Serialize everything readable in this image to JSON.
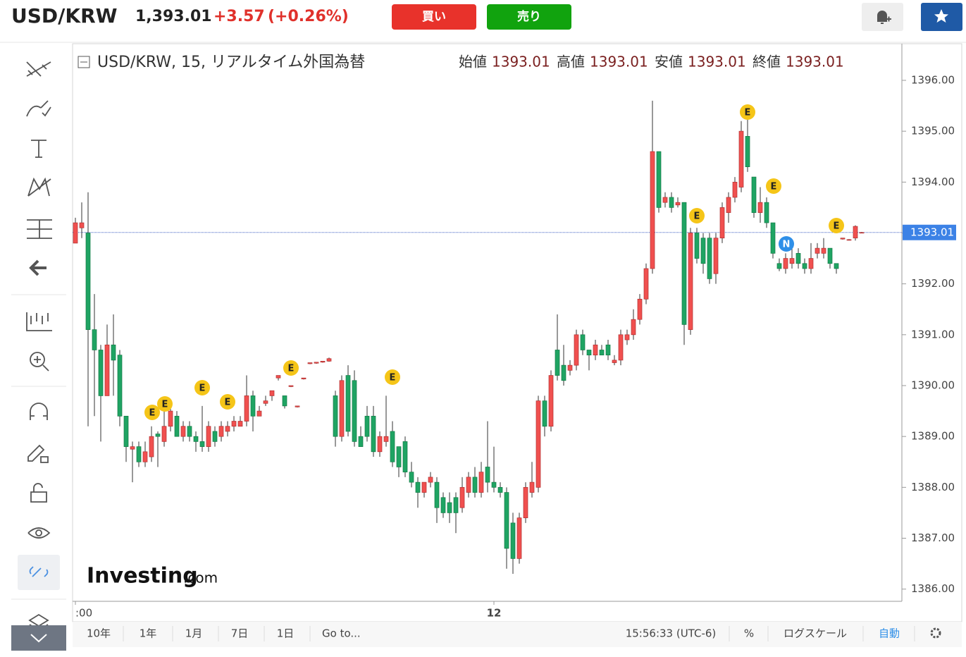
{
  "header": {
    "symbol": "USD/KRW",
    "price": "1,393.01",
    "change": "+3.57",
    "change_pct": "(+0.26%)",
    "buy": "買い",
    "sell": "売り"
  },
  "legend": {
    "title": "USD/KRW, 15, リアルタイム外国為替",
    "ohlc": [
      {
        "label": "始値",
        "value": 1393.01
      },
      {
        "label": "高値",
        "value": 1393.01
      },
      {
        "label": "安値",
        "value": 1393.01
      },
      {
        "label": "終値",
        "value": 1393.01
      }
    ]
  },
  "chart_data": {
    "type": "candlestick",
    "up_color": "#f0504f",
    "down_color": "#1fa463",
    "ylim": [
      1385.76,
      1396.72
    ],
    "yticks": [
      {
        "value": 1386,
        "label": "1386.00"
      },
      {
        "value": 1387,
        "label": "1387.00"
      },
      {
        "value": 1388,
        "label": "1388.00"
      },
      {
        "value": 1389,
        "label": "1389.00"
      },
      {
        "value": 1390,
        "label": "1390.00"
      },
      {
        "value": 1391,
        "label": "1391.00"
      },
      {
        "value": 1392,
        "label": "1392.00"
      },
      {
        "value": 1393,
        "label": "1393.00"
      },
      {
        "value": 1394,
        "label": "1394.00"
      },
      {
        "value": 1395,
        "label": "1395.00"
      },
      {
        "value": 1396,
        "label": "1396.00"
      }
    ],
    "last_price": {
      "value": 1393.01,
      "label": "1393.01"
    },
    "events": [
      "E",
      "E",
      "E",
      "E",
      "E",
      "E",
      "E",
      "E",
      "E",
      "E",
      "N"
    ],
    "categories": [
      ":00",
      null,
      null,
      null,
      null,
      null,
      null,
      null,
      null,
      null,
      null,
      null,
      null,
      null,
      null,
      null,
      null,
      null,
      null,
      null,
      null,
      null,
      null,
      null,
      null,
      null,
      null,
      null,
      null,
      null,
      null,
      null,
      null,
      null,
      null,
      null,
      null,
      null,
      null,
      null,
      null,
      null,
      null,
      null,
      null,
      null,
      null,
      null,
      null,
      null,
      null,
      null,
      null,
      null,
      null,
      null,
      null,
      null,
      null,
      null,
      null,
      null,
      null,
      null,
      null,
      null,
      "12",
      null,
      null,
      null,
      null,
      null,
      null,
      null,
      null,
      null,
      null,
      null,
      null,
      null,
      null,
      null,
      null,
      null,
      null,
      null,
      null,
      null,
      null,
      null,
      null,
      null,
      null,
      null,
      null,
      null,
      null,
      null,
      null,
      null,
      null,
      null,
      null,
      null,
      null,
      null,
      null,
      null,
      null,
      null,
      null,
      null,
      null,
      null,
      null,
      null,
      null,
      null,
      null,
      null,
      null,
      null,
      null,
      null,
      null
    ],
    "candles": [
      [
        1392.8,
        1393.3,
        1392.8,
        1393.2
      ],
      [
        1393.1,
        1393.6,
        1392.9,
        1393.2
      ],
      [
        1393.0,
        1393.8,
        1389.2,
        1391.1
      ],
      [
        1391.1,
        1391.8,
        1389.4,
        1390.7
      ],
      [
        1390.7,
        1390.8,
        1388.9,
        1389.8
      ],
      [
        1389.8,
        1391.2,
        1389.8,
        1390.8
      ],
      [
        1390.8,
        1391.4,
        1389.8,
        1390.5
      ],
      [
        1390.6,
        1390.7,
        1389.2,
        1389.4
      ],
      [
        1389.4,
        1389.4,
        1388.5,
        1388.8
      ],
      [
        1388.75,
        1388.9,
        1388.1,
        1388.8
      ],
      [
        1388.8,
        1388.9,
        1388.4,
        1388.5
      ],
      [
        1388.5,
        1388.9,
        1388.4,
        1388.7
      ],
      [
        1388.6,
        1389.2,
        1388.5,
        1389.0
      ],
      [
        1389.05,
        1389.1,
        1388.4,
        1389.0
      ],
      [
        1388.9,
        1389.5,
        1388.8,
        1389.2
      ],
      [
        1389.2,
        1389.6,
        1389.1,
        1389.5
      ],
      [
        1389.4,
        1389.5,
        1389.0,
        1389.0
      ],
      [
        1389.0,
        1389.3,
        1388.9,
        1389.2
      ],
      [
        1389.2,
        1389.3,
        1388.9,
        1389.0
      ],
      [
        1389.0,
        1389.1,
        1388.7,
        1388.9
      ],
      [
        1388.9,
        1389.6,
        1388.7,
        1388.8
      ],
      [
        1388.8,
        1389.3,
        1388.7,
        1389.2
      ],
      [
        1389.1,
        1389.2,
        1388.8,
        1388.9
      ],
      [
        1389.0,
        1389.3,
        1388.9,
        1389.2
      ],
      [
        1389.1,
        1389.3,
        1389.0,
        1389.2
      ],
      [
        1389.2,
        1389.4,
        1389.1,
        1389.3
      ],
      [
        1389.2,
        1389.4,
        1389.2,
        1389.3
      ],
      [
        1389.3,
        1390.2,
        1389.2,
        1389.8
      ],
      [
        1389.8,
        1389.9,
        1389.1,
        1389.4
      ],
      [
        1389.4,
        1389.6,
        1389.4,
        1389.5
      ],
      [
        1389.65,
        1389.8,
        1389.6,
        1389.7
      ],
      [
        1389.8,
        1389.9,
        1389.7,
        1389.9
      ],
      [
        1390.15,
        1390.2,
        1390.1,
        1390.2
      ],
      [
        1389.8,
        1389.8,
        1389.55,
        1389.6
      ],
      [
        1389.98,
        1390.0,
        1389.97,
        1390.0
      ],
      [
        1389.58,
        1389.6,
        1389.57,
        1389.6
      ],
      [
        1390.13,
        1390.15,
        1390.12,
        1390.15
      ],
      [
        1390.43,
        1390.45,
        1390.42,
        1390.45
      ],
      [
        1390.44,
        1390.46,
        1390.43,
        1390.46
      ],
      [
        1390.46,
        1390.48,
        1390.45,
        1390.48
      ],
      [
        1390.48,
        1390.55,
        1390.47,
        1390.53
      ],
      [
        1389.8,
        1389.9,
        1388.8,
        1389.0
      ],
      [
        1389.0,
        1390.2,
        1388.9,
        1390.1
      ],
      [
        1390.2,
        1390.4,
        1389.0,
        1389.1
      ],
      [
        1390.1,
        1390.3,
        1388.8,
        1388.9
      ],
      [
        1389.0,
        1389.2,
        1388.8,
        1388.8
      ],
      [
        1389.4,
        1389.6,
        1388.9,
        1389.0
      ],
      [
        1389.4,
        1389.6,
        1388.6,
        1388.7
      ],
      [
        1388.7,
        1389.1,
        1388.6,
        1389.0
      ],
      [
        1388.9,
        1389.8,
        1388.8,
        1389.0
      ],
      [
        1389.1,
        1389.3,
        1388.4,
        1388.5
      ],
      [
        1388.8,
        1388.8,
        1388.2,
        1388.4
      ],
      [
        1388.9,
        1389.0,
        1388.2,
        1388.3
      ],
      [
        1388.3,
        1388.5,
        1388.0,
        1388.1
      ],
      [
        1388.1,
        1388.2,
        1387.6,
        1387.9
      ],
      [
        1387.9,
        1388.1,
        1387.8,
        1388.1
      ],
      [
        1388.1,
        1388.3,
        1388.0,
        1388.2
      ],
      [
        1388.1,
        1388.2,
        1387.3,
        1387.6
      ],
      [
        1387.8,
        1387.9,
        1387.4,
        1387.5
      ],
      [
        1387.7,
        1387.9,
        1387.3,
        1387.5
      ],
      [
        1387.8,
        1387.9,
        1387.1,
        1387.5
      ],
      [
        1387.6,
        1388.2,
        1387.5,
        1388.0
      ],
      [
        1387.9,
        1388.3,
        1387.8,
        1388.2
      ],
      [
        1388.2,
        1388.4,
        1387.8,
        1387.9
      ],
      [
        1387.9,
        1388.5,
        1387.8,
        1388.3
      ],
      [
        1388.4,
        1389.3,
        1387.9,
        1388.1
      ],
      [
        1388.1,
        1388.8,
        1387.9,
        1388.0
      ],
      [
        1388.0,
        1388.1,
        1387.8,
        1387.9
      ],
      [
        1387.9,
        1388.0,
        1386.4,
        1386.8
      ],
      [
        1387.3,
        1387.5,
        1386.3,
        1386.6
      ],
      [
        1386.6,
        1387.5,
        1386.5,
        1387.4
      ],
      [
        1387.4,
        1388.1,
        1387.3,
        1388.0
      ],
      [
        1387.9,
        1388.5,
        1387.8,
        1388.1
      ],
      [
        1388.0,
        1389.8,
        1387.9,
        1389.7
      ],
      [
        1389.7,
        1389.8,
        1389.0,
        1389.2
      ],
      [
        1389.2,
        1390.3,
        1389.1,
        1390.2
      ],
      [
        1390.7,
        1391.4,
        1390.1,
        1390.2
      ],
      [
        1390.4,
        1390.8,
        1390.0,
        1390.1
      ],
      [
        1390.3,
        1390.5,
        1390.2,
        1390.4
      ],
      [
        1390.4,
        1391.1,
        1390.3,
        1391.0
      ],
      [
        1391.0,
        1391.1,
        1390.6,
        1390.7
      ],
      [
        1390.7,
        1390.7,
        1390.3,
        1390.6
      ],
      [
        1390.6,
        1390.9,
        1390.5,
        1390.8
      ],
      [
        1390.7,
        1390.8,
        1390.6,
        1390.6
      ],
      [
        1390.8,
        1390.9,
        1390.5,
        1390.6
      ],
      [
        1390.45,
        1390.6,
        1390.4,
        1390.5
      ],
      [
        1390.5,
        1391.1,
        1390.4,
        1391.0
      ],
      [
        1390.9,
        1391.1,
        1390.8,
        1391.0
      ],
      [
        1391.0,
        1391.5,
        1390.9,
        1391.3
      ],
      [
        1391.3,
        1391.8,
        1391.2,
        1391.7
      ],
      [
        1391.7,
        1392.4,
        1391.6,
        1392.3
      ],
      [
        1392.3,
        1395.6,
        1392.2,
        1394.6
      ],
      [
        1394.6,
        1394.6,
        1393.4,
        1393.5
      ],
      [
        1393.6,
        1393.8,
        1393.5,
        1393.7
      ],
      [
        1393.7,
        1393.8,
        1393.4,
        1393.5
      ],
      [
        1393.55,
        1393.7,
        1393.5,
        1393.6
      ],
      [
        1393.6,
        1393.6,
        1390.8,
        1391.2
      ],
      [
        1391.1,
        1393.1,
        1391.0,
        1393.0
      ],
      [
        1393.0,
        1393.1,
        1392.4,
        1392.5
      ],
      [
        1392.9,
        1393.0,
        1392.2,
        1392.4
      ],
      [
        1392.9,
        1393.0,
        1392.0,
        1392.1
      ],
      [
        1392.2,
        1393.0,
        1392.0,
        1392.9
      ],
      [
        1392.9,
        1393.6,
        1392.8,
        1393.5
      ],
      [
        1393.4,
        1393.8,
        1393.2,
        1393.7
      ],
      [
        1393.7,
        1394.1,
        1393.6,
        1394.0
      ],
      [
        1393.9,
        1395.2,
        1393.8,
        1395.0
      ],
      [
        1394.9,
        1395.3,
        1394.2,
        1394.3
      ],
      [
        1394.1,
        1394.1,
        1393.3,
        1393.4
      ],
      [
        1393.4,
        1393.9,
        1393.2,
        1393.6
      ],
      [
        1393.6,
        1393.7,
        1393.1,
        1393.2
      ],
      [
        1393.2,
        1393.2,
        1392.5,
        1392.6
      ],
      [
        1392.4,
        1392.5,
        1392.25,
        1392.3
      ],
      [
        1392.3,
        1392.6,
        1392.2,
        1392.5
      ],
      [
        1392.4,
        1392.7,
        1392.3,
        1392.5
      ],
      [
        1392.6,
        1392.7,
        1392.3,
        1392.4
      ],
      [
        1392.4,
        1392.5,
        1392.2,
        1392.3
      ],
      [
        1392.3,
        1392.8,
        1392.2,
        1392.5
      ],
      [
        1392.6,
        1392.8,
        1392.5,
        1392.7
      ],
      [
        1392.6,
        1392.9,
        1392.5,
        1392.7
      ],
      [
        1392.7,
        1392.7,
        1392.3,
        1392.4
      ],
      [
        1392.4,
        1392.4,
        1392.2,
        1392.3
      ],
      [
        1392.88,
        1392.9,
        1392.87,
        1392.9
      ],
      [
        1392.86,
        1392.88,
        1392.85,
        1392.87
      ],
      [
        1392.9,
        1393.15,
        1392.85,
        1393.13
      ],
      [
        1393.0,
        1393.02,
        1393.0,
        1393.01
      ]
    ]
  },
  "watermark": {
    "brand": "Investing",
    "suffix": ".com"
  },
  "toolbar": {
    "ranges": [
      "10年",
      "1年",
      "1月",
      "7日",
      "1日"
    ],
    "goto": "Go to...",
    "time": "15:56:33 (UTC-6)",
    "percent": "%",
    "log": "ログスケール",
    "auto": "自動"
  }
}
